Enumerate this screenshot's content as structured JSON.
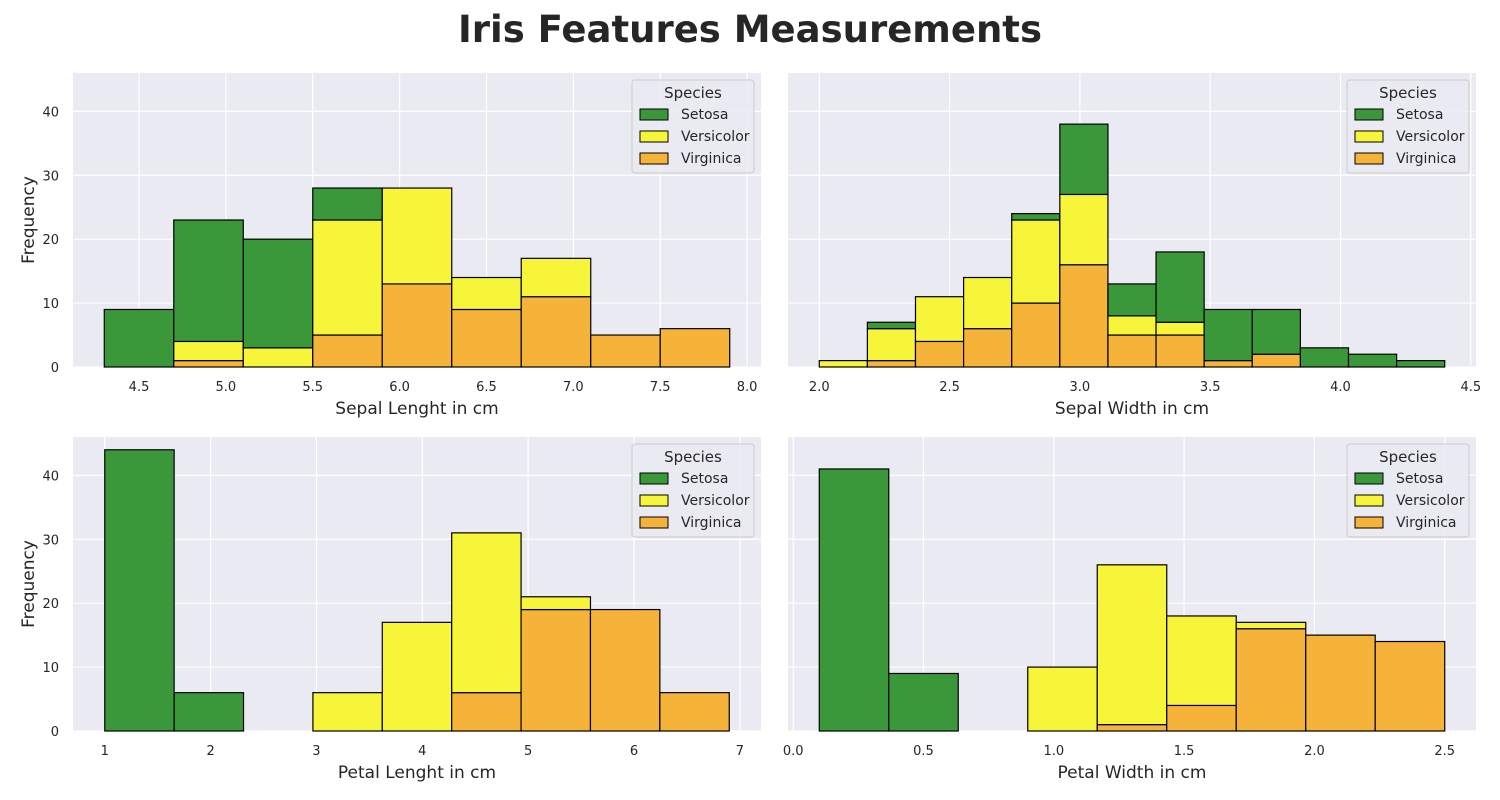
{
  "title": "Iris Features Measurements",
  "colors": {
    "Setosa": "#3a983a",
    "Versicolor": "#f6f53a",
    "Virginica": "#f6b33a",
    "background": "#eaeaf2",
    "grid": "#ffffff",
    "edge": "#000000"
  },
  "chart_data": [
    {
      "type": "bar",
      "stacked": true,
      "xlabel": "Sepal Lenght in cm",
      "ylabel": "Frequency",
      "xlim": [
        4.12,
        8.08
      ],
      "ylim": [
        0,
        46
      ],
      "xticks": [
        4.5,
        5.0,
        5.5,
        6.0,
        6.5,
        7.0,
        7.5,
        8.0
      ],
      "xtick_labels": [
        "4.5",
        "5.0",
        "5.5",
        "6.0",
        "6.5",
        "7.0",
        "7.5",
        "8.0"
      ],
      "yticks": [
        0,
        10,
        20,
        30,
        40
      ],
      "bin_edges": [
        4.3,
        4.7,
        5.1,
        5.5,
        5.9,
        6.3,
        6.7,
        7.1,
        7.5,
        7.9
      ],
      "legend": {
        "title": "Species",
        "placement": "top-right"
      },
      "grid": true,
      "series": [
        {
          "name": "Setosa",
          "values": [
            9,
            19,
            17,
            5,
            0,
            0,
            0,
            0,
            0
          ]
        },
        {
          "name": "Versicolor",
          "values": [
            0,
            3,
            3,
            18,
            15,
            5,
            6,
            0,
            0
          ]
        },
        {
          "name": "Virginica",
          "values": [
            0,
            1,
            0,
            5,
            13,
            9,
            11,
            5,
            6
          ]
        }
      ]
    },
    {
      "type": "bar",
      "stacked": true,
      "xlabel": "Sepal Width in cm",
      "ylabel": "",
      "xlim": [
        1.88,
        4.52
      ],
      "ylim": [
        0,
        46
      ],
      "xticks": [
        2.0,
        2.5,
        3.0,
        3.5,
        4.0,
        4.5
      ],
      "xtick_labels": [
        "2.0",
        "2.5",
        "3.0",
        "3.5",
        "4.0",
        "4.5"
      ],
      "yticks": [
        0,
        10,
        20,
        30,
        40
      ],
      "bin_edges": [
        2.0,
        2.1846,
        2.3692,
        2.5538,
        2.7385,
        2.9231,
        3.1077,
        3.2923,
        3.4769,
        3.6615,
        3.8462,
        4.0308,
        4.2154,
        4.4
      ],
      "legend": {
        "title": "Species",
        "placement": "top-right"
      },
      "grid": true,
      "series": [
        {
          "name": "Setosa",
          "values": [
            0,
            1,
            0,
            0,
            1,
            11,
            5,
            11,
            8,
            7,
            3,
            2,
            1
          ]
        },
        {
          "name": "Versicolor",
          "values": [
            1,
            5,
            7,
            8,
            13,
            11,
            3,
            2,
            0,
            0,
            0,
            0,
            0
          ]
        },
        {
          "name": "Virginica",
          "values": [
            0,
            1,
            4,
            6,
            10,
            16,
            5,
            5,
            1,
            2,
            0,
            0,
            0
          ]
        }
      ]
    },
    {
      "type": "bar",
      "stacked": true,
      "xlabel": "Petal Lenght in cm",
      "ylabel": "Frequency",
      "xlim": [
        0.7,
        7.2
      ],
      "ylim": [
        0,
        46
      ],
      "xticks": [
        1,
        2,
        3,
        4,
        5,
        6,
        7
      ],
      "xtick_labels": [
        "1",
        "2",
        "3",
        "4",
        "5",
        "6",
        "7"
      ],
      "yticks": [
        0,
        10,
        20,
        30,
        40
      ],
      "bin_edges": [
        1.0,
        1.6556,
        2.3111,
        2.9667,
        3.6222,
        4.2778,
        4.9333,
        5.5889,
        6.2444,
        6.9
      ],
      "legend": {
        "title": "Species",
        "placement": "top-right"
      },
      "grid": true,
      "series": [
        {
          "name": "Setosa",
          "values": [
            44,
            6,
            0,
            0,
            0,
            0,
            0,
            0,
            0
          ]
        },
        {
          "name": "Versicolor",
          "values": [
            0,
            0,
            0,
            6,
            17,
            25,
            2,
            0,
            0
          ]
        },
        {
          "name": "Virginica",
          "values": [
            0,
            0,
            0,
            0,
            0,
            6,
            19,
            19,
            6
          ]
        }
      ]
    },
    {
      "type": "bar",
      "stacked": true,
      "xlabel": "Petal Width in cm",
      "ylabel": "",
      "xlim": [
        -0.02,
        2.62
      ],
      "ylim": [
        0,
        46
      ],
      "xticks": [
        0.0,
        0.5,
        1.0,
        1.5,
        2.0,
        2.5
      ],
      "xtick_labels": [
        "0.0",
        "0.5",
        "1.0",
        "1.5",
        "2.0",
        "2.5"
      ],
      "yticks": [
        0,
        10,
        20,
        30,
        40
      ],
      "bin_edges": [
        0.1,
        0.3667,
        0.6333,
        0.9,
        1.1667,
        1.4333,
        1.7,
        1.9667,
        2.2333,
        2.5
      ],
      "legend": {
        "title": "Species",
        "placement": "top-right"
      },
      "grid": true,
      "series": [
        {
          "name": "Setosa",
          "values": [
            41,
            9,
            0,
            0,
            0,
            0,
            0,
            0,
            0
          ]
        },
        {
          "name": "Versicolor",
          "values": [
            0,
            0,
            0,
            10,
            25,
            14,
            1,
            0,
            0
          ]
        },
        {
          "name": "Virginica",
          "values": [
            0,
            0,
            0,
            0,
            1,
            4,
            16,
            15,
            14
          ]
        }
      ]
    }
  ]
}
